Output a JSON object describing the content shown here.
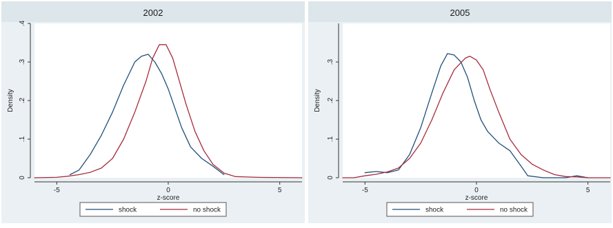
{
  "chart_data": [
    {
      "type": "line",
      "title": "2002",
      "xlabel": "z-score",
      "ylabel": "Density",
      "xlim": [
        -6,
        6
      ],
      "ylim": [
        0,
        0.4
      ],
      "x_ticks": [
        -5,
        0,
        5
      ],
      "y_ticks": [
        0,
        0.1,
        0.2,
        0.3,
        0.4
      ],
      "x_tick_labels": [
        "-5",
        "0",
        "5"
      ],
      "y_tick_labels": [
        "0",
        ".1",
        ".2",
        ".3",
        ".4"
      ],
      "grid": false,
      "legend_position": "bottom",
      "series": [
        {
          "name": "shock",
          "color": "#1f4e79",
          "points": [
            [
              -4.4,
              0.008
            ],
            [
              -4.0,
              0.02
            ],
            [
              -3.5,
              0.06
            ],
            [
              -3.0,
              0.11
            ],
            [
              -2.5,
              0.17
            ],
            [
              -2.0,
              0.24
            ],
            [
              -1.5,
              0.3
            ],
            [
              -1.2,
              0.315
            ],
            [
              -0.9,
              0.32
            ],
            [
              -0.6,
              0.3
            ],
            [
              -0.3,
              0.27
            ],
            [
              0.0,
              0.23
            ],
            [
              0.3,
              0.18
            ],
            [
              0.6,
              0.13
            ],
            [
              1.0,
              0.08
            ],
            [
              1.5,
              0.05
            ],
            [
              2.0,
              0.03
            ],
            [
              2.5,
              0.008
            ]
          ]
        },
        {
          "name": "no shock",
          "color": "#a52a3a",
          "points": [
            [
              -6.0,
              0.0
            ],
            [
              -5.0,
              0.001
            ],
            [
              -4.5,
              0.004
            ],
            [
              -4.0,
              0.008
            ],
            [
              -3.5,
              0.014
            ],
            [
              -3.0,
              0.025
            ],
            [
              -2.5,
              0.05
            ],
            [
              -2.0,
              0.1
            ],
            [
              -1.5,
              0.17
            ],
            [
              -1.0,
              0.25
            ],
            [
              -0.7,
              0.31
            ],
            [
              -0.4,
              0.345
            ],
            [
              -0.1,
              0.345
            ],
            [
              0.2,
              0.31
            ],
            [
              0.5,
              0.25
            ],
            [
              0.8,
              0.19
            ],
            [
              1.2,
              0.12
            ],
            [
              1.6,
              0.07
            ],
            [
              2.0,
              0.035
            ],
            [
              2.5,
              0.012
            ],
            [
              3.0,
              0.003
            ],
            [
              3.5,
              0.002
            ],
            [
              4.0,
              0.001
            ],
            [
              6.0,
              0.0
            ]
          ]
        }
      ]
    },
    {
      "type": "line",
      "title": "2005",
      "xlabel": "z-score",
      "ylabel": "Density",
      "xlim": [
        -6,
        6
      ],
      "ylim": [
        0,
        0.4
      ],
      "x_ticks": [
        -5,
        0,
        5
      ],
      "y_ticks": [
        0,
        0.1,
        0.2,
        0.3
      ],
      "x_tick_labels": [
        "-5",
        "0",
        "5"
      ],
      "y_tick_labels": [
        "0",
        ".1",
        ".2",
        ".3"
      ],
      "grid": false,
      "legend_position": "bottom",
      "series": [
        {
          "name": "shock",
          "color": "#1f4e79",
          "points": [
            [
              -5.0,
              0.013
            ],
            [
              -4.5,
              0.016
            ],
            [
              -4.0,
              0.013
            ],
            [
              -3.5,
              0.02
            ],
            [
              -3.0,
              0.06
            ],
            [
              -2.5,
              0.13
            ],
            [
              -2.0,
              0.22
            ],
            [
              -1.6,
              0.29
            ],
            [
              -1.3,
              0.322
            ],
            [
              -1.0,
              0.318
            ],
            [
              -0.7,
              0.3
            ],
            [
              -0.4,
              0.26
            ],
            [
              -0.1,
              0.2
            ],
            [
              0.2,
              0.15
            ],
            [
              0.5,
              0.12
            ],
            [
              1.0,
              0.09
            ],
            [
              1.5,
              0.07
            ],
            [
              2.0,
              0.03
            ],
            [
              2.3,
              0.005
            ],
            [
              3.0,
              0.0
            ],
            [
              4.0,
              0.0
            ],
            [
              4.5,
              0.005
            ],
            [
              5.0,
              0.0
            ]
          ]
        },
        {
          "name": "no shock",
          "color": "#a52a3a",
          "points": [
            [
              -6.0,
              0.0
            ],
            [
              -5.5,
              0.0
            ],
            [
              -5.0,
              0.005
            ],
            [
              -4.5,
              0.009
            ],
            [
              -4.0,
              0.015
            ],
            [
              -3.5,
              0.025
            ],
            [
              -3.0,
              0.05
            ],
            [
              -2.5,
              0.09
            ],
            [
              -2.0,
              0.15
            ],
            [
              -1.5,
              0.22
            ],
            [
              -1.0,
              0.28
            ],
            [
              -0.5,
              0.31
            ],
            [
              -0.3,
              0.315
            ],
            [
              0.0,
              0.305
            ],
            [
              0.3,
              0.28
            ],
            [
              0.6,
              0.23
            ],
            [
              1.0,
              0.17
            ],
            [
              1.5,
              0.1
            ],
            [
              2.0,
              0.06
            ],
            [
              2.5,
              0.035
            ],
            [
              3.0,
              0.02
            ],
            [
              3.5,
              0.008
            ],
            [
              4.0,
              0.003
            ],
            [
              4.5,
              0.002
            ],
            [
              5.0,
              0.0
            ],
            [
              6.0,
              0.0
            ]
          ]
        }
      ]
    }
  ]
}
